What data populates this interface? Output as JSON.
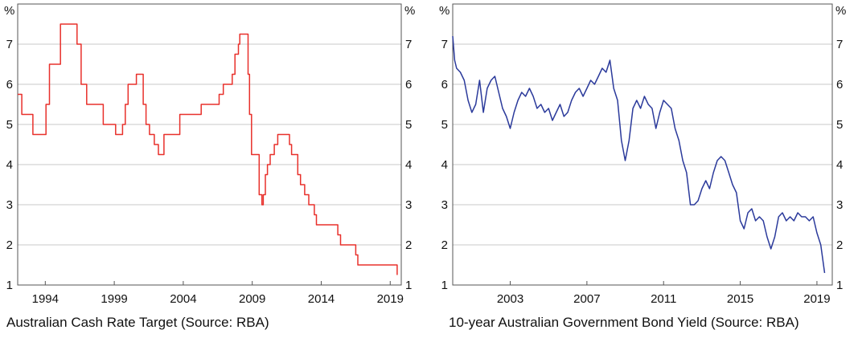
{
  "chart_data": [
    {
      "type": "line",
      "title": "Australian Cash Rate Target (Source: RBA)",
      "xlabel": "",
      "ylabel": "%",
      "ylabel_right": "%",
      "xlim": [
        1992.0,
        2019.8
      ],
      "ylim": [
        1,
        8
      ],
      "yticks": [
        1,
        2,
        3,
        4,
        5,
        6,
        7
      ],
      "xticks": [
        1994,
        1999,
        2004,
        2009,
        2014,
        2019
      ],
      "step": true,
      "grid": true,
      "color": "#e8302b",
      "series": [
        {
          "x": [
            1992.0,
            1992.3,
            1992.5,
            1993.1,
            1993.5,
            1993.8,
            1994.05,
            1994.3,
            1995.1,
            1995.6,
            1995.9,
            1996.0,
            1996.3,
            1996.6,
            1996.9,
            1997.0,
            1998.2,
            1998.95,
            1999.1,
            1999.3,
            1999.45,
            1999.6,
            1999.8,
            2000.0,
            2000.6,
            2000.9,
            2001.1,
            2001.3,
            2001.55,
            2001.9,
            2002.2,
            2002.6,
            2003.5,
            2003.75,
            2005.0,
            2005.3,
            2006.0,
            2006.4,
            2006.6,
            2006.9,
            2007.55,
            2007.75,
            2008.0,
            2008.1,
            2008.5,
            2008.7,
            2008.8,
            2008.95,
            2009.5,
            2009.7,
            2009.8,
            2009.95,
            2010.1,
            2010.3,
            2010.6,
            2010.85,
            2011.7,
            2011.85,
            2012.3,
            2012.5,
            2012.8,
            2013.1,
            2013.5,
            2013.65,
            2015.2,
            2015.4,
            2016.5,
            2016.65,
            2019.4,
            2019.5
          ],
          "values": [
            5.75,
            5.25,
            5.25,
            4.75,
            4.75,
            4.75,
            5.5,
            6.5,
            7.5,
            7.5,
            7.5,
            7.5,
            7.0,
            6.0,
            6.0,
            5.5,
            5.0,
            5.0,
            4.75,
            4.75,
            4.75,
            5.0,
            5.5,
            6.0,
            6.25,
            6.25,
            5.5,
            5.0,
            4.75,
            4.5,
            4.25,
            4.75,
            4.75,
            5.25,
            5.25,
            5.5,
            5.5,
            5.5,
            5.75,
            6.0,
            6.25,
            6.75,
            7.0,
            7.25,
            7.25,
            6.25,
            5.25,
            4.25,
            3.25,
            3.0,
            3.25,
            3.75,
            4.0,
            4.25,
            4.5,
            4.75,
            4.5,
            4.25,
            3.75,
            3.5,
            3.25,
            3.0,
            2.75,
            2.5,
            2.25,
            2.0,
            1.75,
            1.5,
            1.5,
            1.25
          ]
        }
      ]
    },
    {
      "type": "line",
      "title": "10-year Australian Government Bond Yield (Source: RBA)",
      "xlabel": "",
      "ylabel": "%",
      "ylabel_right": "%",
      "xlim": [
        2000.0,
        2019.8
      ],
      "ylim": [
        1,
        8
      ],
      "yticks": [
        1,
        2,
        3,
        4,
        5,
        6,
        7
      ],
      "xticks": [
        2003,
        2007,
        2011,
        2015,
        2019
      ],
      "step": false,
      "grid": true,
      "color": "#2b3a9b",
      "series": [
        {
          "x": [
            2000.0,
            2000.1,
            2000.2,
            2000.4,
            2000.6,
            2000.8,
            2001.0,
            2001.2,
            2001.4,
            2001.6,
            2001.8,
            2002.0,
            2002.2,
            2002.4,
            2002.6,
            2002.8,
            2003.0,
            2003.2,
            2003.4,
            2003.6,
            2003.8,
            2004.0,
            2004.2,
            2004.4,
            2004.6,
            2004.8,
            2005.0,
            2005.2,
            2005.4,
            2005.6,
            2005.8,
            2006.0,
            2006.2,
            2006.4,
            2006.6,
            2006.8,
            2007.0,
            2007.2,
            2007.4,
            2007.6,
            2007.8,
            2008.0,
            2008.2,
            2008.4,
            2008.6,
            2008.8,
            2009.0,
            2009.2,
            2009.4,
            2009.6,
            2009.8,
            2010.0,
            2010.2,
            2010.4,
            2010.6,
            2010.8,
            2011.0,
            2011.2,
            2011.4,
            2011.6,
            2011.8,
            2012.0,
            2012.2,
            2012.4,
            2012.6,
            2012.8,
            2013.0,
            2013.2,
            2013.4,
            2013.6,
            2013.8,
            2014.0,
            2014.2,
            2014.4,
            2014.6,
            2014.8,
            2015.0,
            2015.2,
            2015.4,
            2015.6,
            2015.8,
            2016.0,
            2016.2,
            2016.4,
            2016.6,
            2016.8,
            2017.0,
            2017.2,
            2017.4,
            2017.6,
            2017.8,
            2018.0,
            2018.2,
            2018.4,
            2018.6,
            2018.8,
            2019.0,
            2019.2,
            2019.4
          ],
          "values": [
            7.2,
            6.6,
            6.4,
            6.3,
            6.1,
            5.6,
            5.3,
            5.5,
            6.1,
            5.3,
            5.9,
            6.1,
            6.2,
            5.8,
            5.4,
            5.2,
            4.9,
            5.3,
            5.6,
            5.8,
            5.7,
            5.9,
            5.7,
            5.4,
            5.5,
            5.3,
            5.4,
            5.1,
            5.3,
            5.5,
            5.2,
            5.3,
            5.6,
            5.8,
            5.9,
            5.7,
            5.9,
            6.1,
            6.0,
            6.2,
            6.4,
            6.3,
            6.6,
            5.9,
            5.6,
            4.6,
            4.1,
            4.6,
            5.4,
            5.6,
            5.4,
            5.7,
            5.5,
            5.4,
            4.9,
            5.3,
            5.6,
            5.5,
            5.4,
            4.9,
            4.6,
            4.1,
            3.8,
            3.0,
            3.0,
            3.1,
            3.4,
            3.6,
            3.4,
            3.8,
            4.1,
            4.2,
            4.1,
            3.8,
            3.5,
            3.3,
            2.6,
            2.4,
            2.8,
            2.9,
            2.6,
            2.7,
            2.6,
            2.2,
            1.9,
            2.2,
            2.7,
            2.8,
            2.6,
            2.7,
            2.6,
            2.8,
            2.7,
            2.7,
            2.6,
            2.7,
            2.3,
            2.0,
            1.3
          ]
        }
      ]
    }
  ]
}
